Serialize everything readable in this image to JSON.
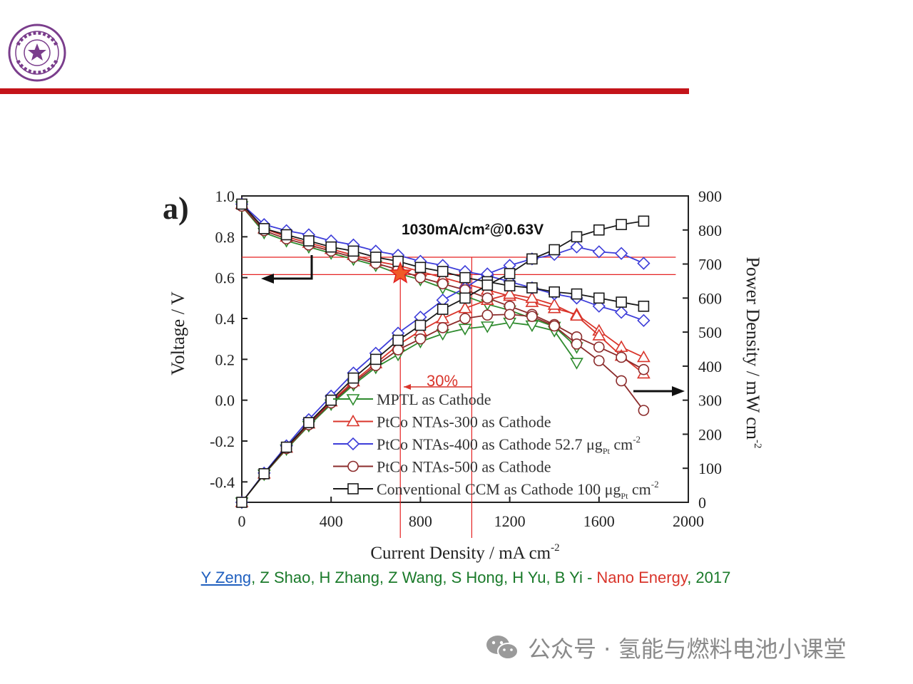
{
  "header": {
    "logo_text": "清华大学 TSINGHUA UNIVERSITY 1911",
    "brand_color": "#c4141a",
    "logo_color": "#7a3d8c"
  },
  "chart_data": {
    "type": "line",
    "panel_label": "a)",
    "xlabel": "Current Density / mA cm",
    "xlabel_sup": "-2",
    "ylabel_left": "Voltage / V",
    "ylabel_right": "Power Density / mW cm",
    "ylabel_right_sup": "-2",
    "xlim": [
      0,
      2000
    ],
    "ylim_left": [
      -0.5,
      1.0
    ],
    "ylim_right": [
      0,
      900
    ],
    "x_ticks": [
      0,
      400,
      800,
      1200,
      1600,
      2000
    ],
    "y_left_ticks": [
      "-0.4",
      "-0.2",
      "0.0",
      "0.2",
      "0.4",
      "0.6",
      "0.8",
      "1.0"
    ],
    "y_right_ticks": [
      "0",
      "100",
      "200",
      "300",
      "400",
      "500",
      "600",
      "700",
      "800",
      "900"
    ],
    "x": [
      0,
      100,
      200,
      300,
      400,
      500,
      600,
      700,
      800,
      900,
      1000,
      1100,
      1200,
      1300,
      1400,
      1500,
      1600,
      1700,
      1800
    ],
    "series": [
      {
        "name": "MPTL as Cathode",
        "color": "#2e8b2e",
        "marker": "triangle-down",
        "voltage": [
          0.95,
          0.82,
          0.78,
          0.75,
          0.72,
          0.69,
          0.66,
          0.62,
          0.59,
          0.55,
          0.51,
          0.47,
          0.44,
          0.4,
          0.36,
          0.26,
          null,
          null,
          null
        ],
        "power": [
          0,
          82,
          156,
          225,
          288,
          345,
          396,
          434,
          472,
          495,
          510,
          517,
          528,
          520,
          504,
          410,
          null,
          null,
          null
        ]
      },
      {
        "name": "PtCo NTAs-300 as Cathode",
        "color": "#d9352b",
        "marker": "triangle-up",
        "voltage": [
          0.96,
          0.84,
          0.8,
          0.77,
          0.74,
          0.71,
          0.68,
          0.66,
          0.63,
          0.6,
          0.57,
          0.54,
          0.51,
          0.48,
          0.45,
          0.42,
          0.34,
          0.26,
          0.21
        ],
        "power": [
          0,
          84,
          160,
          231,
          296,
          355,
          408,
          462,
          504,
          540,
          570,
          594,
          612,
          600,
          580,
          548,
          490,
          430,
          378
        ]
      },
      {
        "name": "PtCo NTAs-400 as Cathode 52.7 μg",
        "name_sub": "Pt",
        "name_unit": " cm",
        "name_sup": "-2",
        "color": "#3d3dd9",
        "marker": "diamond",
        "voltage": [
          0.96,
          0.86,
          0.83,
          0.81,
          0.78,
          0.76,
          0.73,
          0.71,
          0.68,
          0.66,
          0.63,
          0.61,
          0.58,
          0.55,
          0.52,
          0.5,
          0.46,
          0.43,
          0.39
        ],
        "power": [
          0,
          86,
          166,
          243,
          312,
          380,
          438,
          497,
          544,
          594,
          630,
          671,
          696,
          715,
          728,
          750,
          736,
          731,
          702
        ]
      },
      {
        "name": "PtCo NTAs-500 as Cathode",
        "color": "#8b2b2b",
        "marker": "circle",
        "voltage": [
          0.95,
          0.83,
          0.79,
          0.76,
          0.73,
          0.7,
          0.67,
          0.64,
          0.6,
          0.57,
          0.54,
          0.5,
          0.46,
          0.42,
          0.37,
          0.31,
          0.26,
          0.21,
          0.15
        ],
        "power": [
          0,
          83,
          158,
          228,
          292,
          350,
          402,
          448,
          480,
          513,
          540,
          550,
          552,
          546,
          518,
          465,
          416,
          357,
          270
        ]
      },
      {
        "name": "Conventional CCM as Cathode 100 μg",
        "name_sub": "Pt",
        "name_unit": " cm",
        "name_sup": "-2",
        "color": "#1a1a1a",
        "marker": "square",
        "voltage": [
          0.96,
          0.84,
          0.81,
          0.78,
          0.75,
          0.73,
          0.7,
          0.68,
          0.65,
          0.63,
          0.6,
          0.58,
          0.56,
          0.55,
          0.53,
          0.52,
          0.5,
          0.48,
          0.46
        ],
        "power": [
          0,
          84,
          162,
          234,
          300,
          365,
          420,
          476,
          520,
          567,
          600,
          638,
          672,
          715,
          742,
          780,
          800,
          816,
          826
        ]
      }
    ],
    "annotations": {
      "point_label": "1030mA/cm²@0.63V",
      "percent_label": "30%",
      "highlight_point": {
        "x": 710,
        "v": 0.62
      },
      "highlight_x_lines": [
        710,
        1030
      ],
      "highlight_v_lines": [
        0.7,
        0.615
      ]
    }
  },
  "citation": {
    "first_author": "Y Zeng",
    "coauthors": ", Z Shao, H Zhang, Z Wang, S Hong, H Yu, B Yi - ",
    "journal": "Nano Energy",
    "year": ", 2017"
  },
  "watermark": {
    "text": "公众号 · 氢能与燃料电池小课堂"
  }
}
